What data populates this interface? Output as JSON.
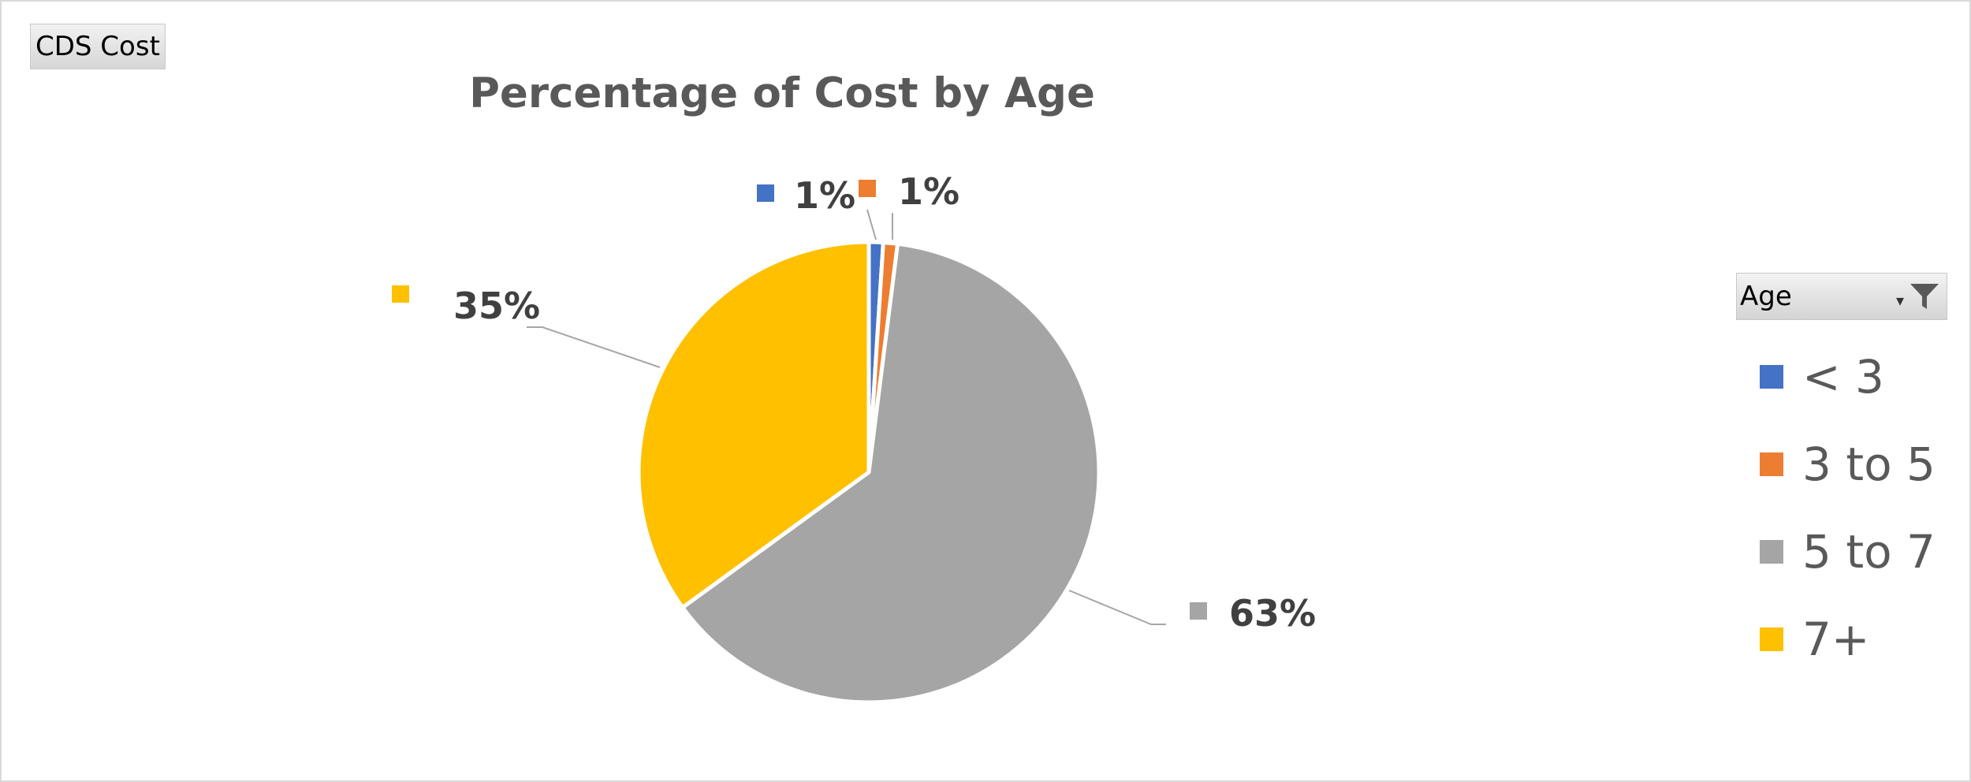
{
  "field_button": {
    "label": "CDS Cost"
  },
  "legend": {
    "header": "Age",
    "dropdown_icon": "dropdown-arrow-icon",
    "filter_icon": "filter-funnel-icon",
    "items": [
      {
        "label": "< 3",
        "color": "#4472C4"
      },
      {
        "label": "3 to 5",
        "color": "#ED7D31"
      },
      {
        "label": "5 to 7",
        "color": "#A5A5A5"
      },
      {
        "label": "7+",
        "color": "#FFC000"
      }
    ]
  },
  "chart_data": {
    "type": "pie",
    "title": "Percentage of Cost by Age",
    "categories": [
      "< 3",
      "3 to 5",
      "5 to 7",
      "7+"
    ],
    "values": [
      1,
      1,
      63,
      35
    ],
    "labels": [
      "1%",
      "1%",
      "63%",
      "35%"
    ],
    "colors": [
      "#4472C4",
      "#ED7D31",
      "#A5A5A5",
      "#FFC000"
    ],
    "start_angle": "12 o'clock, clockwise",
    "legend_position": "right"
  }
}
